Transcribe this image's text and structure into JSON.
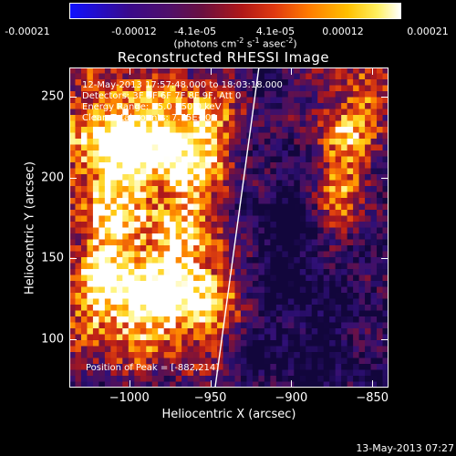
{
  "colorbar": {
    "tick_labels": [
      "-0.00021",
      "-0.00012",
      "-4.1e-05",
      "4.1e-05",
      "0.00012",
      "0.00021"
    ],
    "tick_values": [
      -0.00021,
      -0.00012,
      -4.1e-05,
      4.1e-05,
      0.00012,
      0.00021
    ],
    "range": [
      -0.00021,
      0.00021
    ],
    "units_label": "(photons cm",
    "units_exp1": "-2",
    "units_mid": " s",
    "units_exp2": "-1",
    "units_tail": " asec",
    "units_exp3": "-2",
    "units_close": ")"
  },
  "chart_data": {
    "type": "heatmap",
    "title": "Reconstructed RHESSI Image",
    "xlabel": "Heliocentric X (arcsec)",
    "ylabel": "Heliocentric Y (arcsec)",
    "xlim": [
      -1037,
      -840
    ],
    "ylim": [
      70,
      268
    ],
    "x_ticks": [
      -1000,
      -950,
      -900,
      -850
    ],
    "x_tick_labels": [
      "−1000",
      "−950",
      "−900",
      "−850"
    ],
    "y_ticks": [
      100,
      150,
      200,
      250
    ],
    "y_tick_labels": [
      "100",
      "150",
      "200",
      "250"
    ],
    "limb_line": {
      "x": [
        -947,
        -920
      ],
      "y": [
        70,
        268
      ],
      "color": "#ffffff"
    },
    "annotations": [
      "12-May-2013 17:57:48.000 to 18:03:18.000",
      "Detectors: 3F 5F 6F 7F 8F 9F, Att 0",
      "Energy Range: 25.0 - 50.0 keV",
      "Clean     Total counts: 7.75E+03"
    ],
    "peak_label": "Position of Peak = [-882,214]",
    "peak_position": [
      -882,
      214
    ],
    "grid": false
  },
  "timestamp": "13-May-2013 07:27"
}
